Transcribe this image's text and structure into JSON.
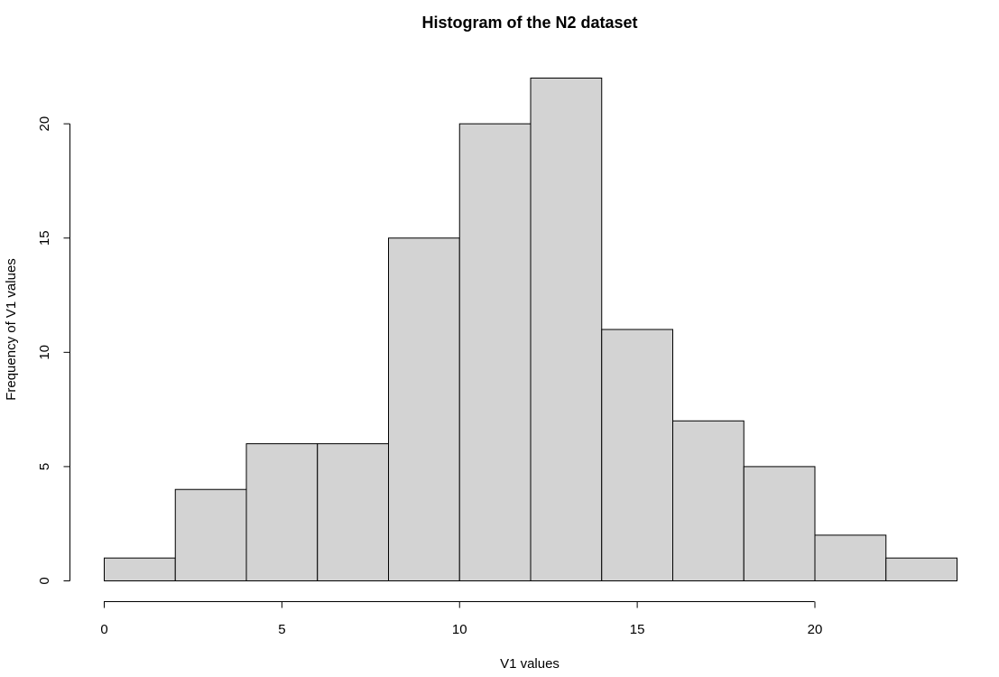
{
  "chart_data": {
    "type": "bar",
    "subtype": "histogram",
    "title": "Histogram of the N2 dataset",
    "xlabel": "V1 values",
    "ylabel": "Frequency of V1 values",
    "bin_edges": [
      0,
      2,
      4,
      6,
      8,
      10,
      12,
      14,
      16,
      18,
      20,
      22,
      24
    ],
    "values": [
      1,
      4,
      6,
      6,
      15,
      20,
      22,
      11,
      7,
      5,
      2,
      1
    ],
    "x_ticks": [
      0,
      5,
      10,
      15,
      20
    ],
    "y_ticks": [
      0,
      5,
      10,
      15,
      20
    ],
    "xlim": [
      0,
      24
    ],
    "ylim": [
      0,
      22
    ],
    "bar_fill": "#d3d3d3",
    "bar_stroke": "#000000",
    "grid": false,
    "legend": "none"
  }
}
